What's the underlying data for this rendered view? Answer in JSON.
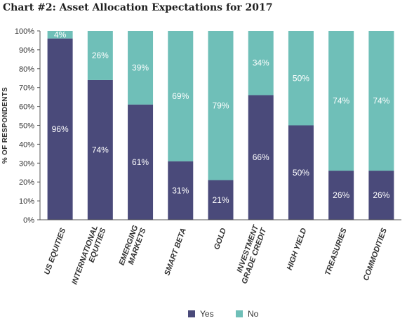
{
  "chart_data": {
    "type": "bar",
    "stacked": true,
    "title": "Chart #2: Asset Allocation Expectations for 2017",
    "ylabel": "% OF RESPONDENTS",
    "xlabel": "",
    "ylim": [
      0,
      100
    ],
    "yticks": [
      "0%",
      "10%",
      "20%",
      "30%",
      "40%",
      "50%",
      "60%",
      "70%",
      "80%",
      "90%",
      "100%"
    ],
    "categories": [
      [
        "US EQUITIES"
      ],
      [
        "INTERNATIONAL",
        "EQUITIES"
      ],
      [
        "EMERGING",
        "MARKETS"
      ],
      [
        "SMART BETA"
      ],
      [
        "GOLD"
      ],
      [
        "INVESTMENT",
        "GRADE CREDIT"
      ],
      [
        "HIGH YIELD"
      ],
      [
        "TREASURIES"
      ],
      [
        "COMMODITIES"
      ]
    ],
    "series": [
      {
        "name": "Yes",
        "color": "#4a4a7a",
        "values": [
          96,
          74,
          61,
          31,
          21,
          66,
          50,
          26,
          26
        ]
      },
      {
        "name": "No",
        "color": "#6fbfb8",
        "values": [
          4,
          26,
          39,
          69,
          79,
          34,
          50,
          74,
          74
        ]
      }
    ],
    "grid": false,
    "legend": "bottom-center"
  }
}
